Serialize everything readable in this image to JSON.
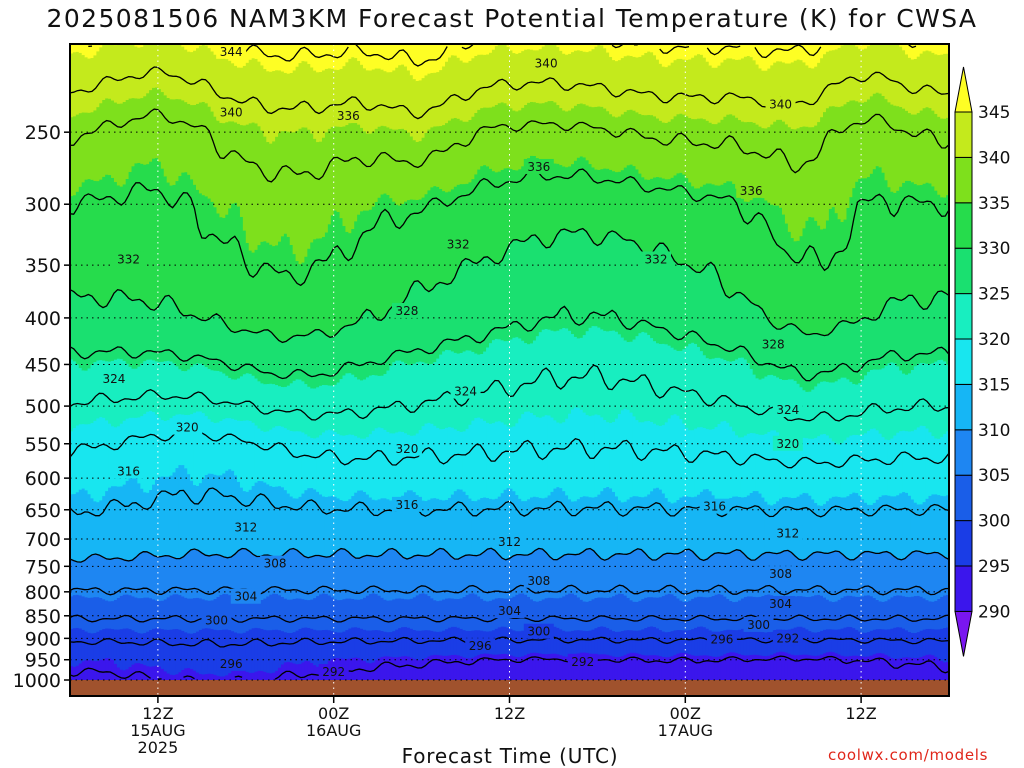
{
  "title": "2025081506 NAM3KM Forecast Potential Temperature (K) for CWSA",
  "x_axis_title": "Forecast Time (UTC)",
  "credit": "coolwx.com/models",
  "colors": {
    "fills": [
      "#7a16f0",
      "#3b16ec",
      "#1a3de6",
      "#1a5ee8",
      "#1e86f2",
      "#16b6f5",
      "#18e6ef",
      "#18eec0",
      "#1ae070",
      "#26dc4c",
      "#7ee01c",
      "#c4ea1c",
      "#fefe24"
    ],
    "ground": "#a0522d",
    "contour": "#000000",
    "gridline": "#000000"
  },
  "chart_data": {
    "type": "heatmap",
    "title": "2025081506 NAM3KM Forecast Potential Temperature (K) for CWSA",
    "xlabel": "Forecast Time (UTC)",
    "ylabel": "",
    "x_range_hours": [
      0,
      60
    ],
    "x_ticks": [
      {
        "hour": 6,
        "lines": [
          "12Z",
          "15AUG",
          "2025"
        ]
      },
      {
        "hour": 18,
        "lines": [
          "00Z",
          "16AUG"
        ]
      },
      {
        "hour": 30,
        "lines": [
          "12Z"
        ]
      },
      {
        "hour": 42,
        "lines": [
          "00Z",
          "17AUG"
        ]
      },
      {
        "hour": 54,
        "lines": [
          "12Z"
        ]
      }
    ],
    "y_ticks_hpa": [
      250,
      300,
      350,
      400,
      450,
      500,
      550,
      600,
      650,
      700,
      750,
      800,
      850,
      900,
      950,
      1000
    ],
    "y_scale": "log pressure (inverted)",
    "colorbar_levels": [
      290,
      295,
      300,
      305,
      310,
      315,
      320,
      325,
      330,
      335,
      340,
      345
    ],
    "colorbar_units": "K",
    "contour_interval": 4,
    "gridlines": "dotted",
    "contour_labels": [
      {
        "value": 344,
        "hour": 11,
        "hpa": 204
      },
      {
        "value": 340,
        "hour": 32.5,
        "hpa": 210
      },
      {
        "value": 340,
        "hour": 48.5,
        "hpa": 233
      },
      {
        "value": 340,
        "hour": 11,
        "hpa": 238
      },
      {
        "value": 336,
        "hour": 19,
        "hpa": 240
      },
      {
        "value": 336,
        "hour": 32,
        "hpa": 273
      },
      {
        "value": 336,
        "hour": 46.5,
        "hpa": 290
      },
      {
        "value": 332,
        "hour": 26.5,
        "hpa": 332
      },
      {
        "value": 332,
        "hour": 4,
        "hpa": 345
      },
      {
        "value": 332,
        "hour": 40,
        "hpa": 345
      },
      {
        "value": 328,
        "hour": 23,
        "hpa": 393
      },
      {
        "value": 328,
        "hour": 48,
        "hpa": 428
      },
      {
        "value": 324,
        "hour": 3,
        "hpa": 467
      },
      {
        "value": 324,
        "hour": 27,
        "hpa": 482
      },
      {
        "value": 324,
        "hour": 49,
        "hpa": 505
      },
      {
        "value": 320,
        "hour": 8,
        "hpa": 528
      },
      {
        "value": 320,
        "hour": 23,
        "hpa": 557
      },
      {
        "value": 320,
        "hour": 49,
        "hpa": 550
      },
      {
        "value": 316,
        "hour": 4,
        "hpa": 590
      },
      {
        "value": 316,
        "hour": 23,
        "hpa": 642
      },
      {
        "value": 316,
        "hour": 44,
        "hpa": 645
      },
      {
        "value": 312,
        "hour": 12,
        "hpa": 680
      },
      {
        "value": 312,
        "hour": 30,
        "hpa": 705
      },
      {
        "value": 312,
        "hour": 49,
        "hpa": 690
      },
      {
        "value": 308,
        "hour": 14,
        "hpa": 745
      },
      {
        "value": 308,
        "hour": 32,
        "hpa": 778
      },
      {
        "value": 308,
        "hour": 48.5,
        "hpa": 765
      },
      {
        "value": 304,
        "hour": 12,
        "hpa": 810
      },
      {
        "value": 304,
        "hour": 30,
        "hpa": 840
      },
      {
        "value": 304,
        "hour": 48.5,
        "hpa": 825
      },
      {
        "value": 300,
        "hour": 10,
        "hpa": 860
      },
      {
        "value": 300,
        "hour": 32,
        "hpa": 885
      },
      {
        "value": 300,
        "hour": 47,
        "hpa": 870
      },
      {
        "value": 296,
        "hour": 28,
        "hpa": 918
      },
      {
        "value": 296,
        "hour": 44.5,
        "hpa": 903
      },
      {
        "value": 296,
        "hour": 11,
        "hpa": 960
      },
      {
        "value": 292,
        "hour": 49,
        "hpa": 900
      },
      {
        "value": 292,
        "hour": 35,
        "hpa": 955
      },
      {
        "value": 292,
        "hour": 18,
        "hpa": 980
      }
    ]
  }
}
